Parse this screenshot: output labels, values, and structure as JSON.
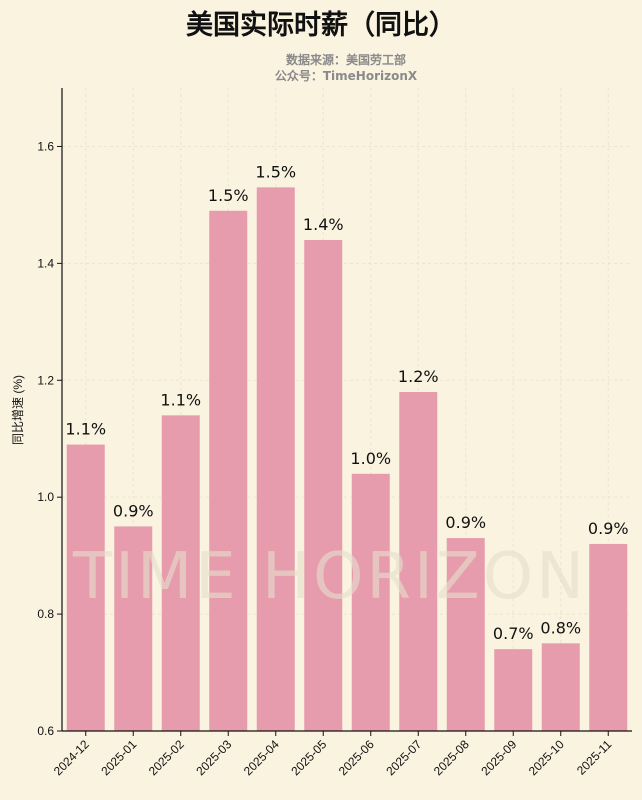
{
  "chart_data": {
    "type": "bar",
    "title": "美国实际时薪（同比）",
    "subtitle": [
      "数据来源：美国劳工部",
      "公众号：TimeHorizonX"
    ],
    "watermark": "TIME HORIZON",
    "xlabel": "",
    "ylabel": "同比增速 (%)",
    "ylim": [
      0.6,
      1.7
    ],
    "yticks": [
      0.6,
      0.8,
      1.0,
      1.2,
      1.4,
      1.6
    ],
    "grid": true,
    "bar_color": "#e79cad",
    "background": "#faf3e0",
    "categories": [
      "2024-12",
      "2025-01",
      "2025-02",
      "2025-03",
      "2025-04",
      "2025-05",
      "2025-06",
      "2025-07",
      "2025-08",
      "2025-09",
      "2025-10",
      "2025-11"
    ],
    "values": [
      1.09,
      0.95,
      1.14,
      1.49,
      1.53,
      1.44,
      1.04,
      1.18,
      0.93,
      0.74,
      0.75,
      0.92
    ],
    "data_labels": [
      "1.1%",
      "0.9%",
      "1.1%",
      "1.5%",
      "1.5%",
      "1.4%",
      "1.0%",
      "1.2%",
      "0.9%",
      "0.7%",
      "0.8%",
      "0.9%"
    ]
  }
}
